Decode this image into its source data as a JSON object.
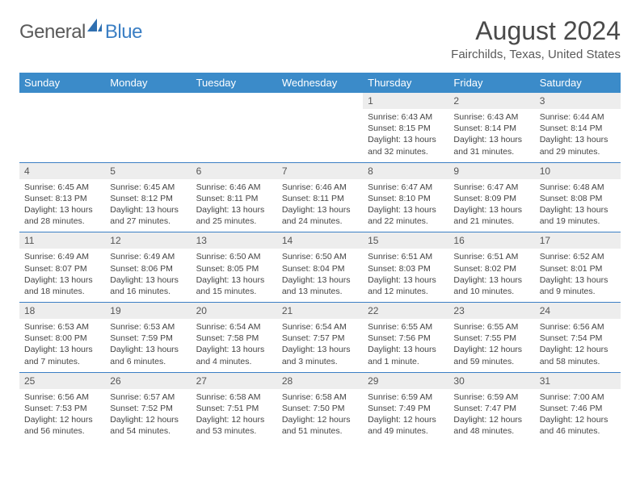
{
  "logo": {
    "text1": "General",
    "text2": "Blue"
  },
  "title": "August 2024",
  "location": "Fairchilds, Texas, United States",
  "colors": {
    "header_bg": "#3b8bc9",
    "header_text": "#ffffff",
    "daynum_bg": "#ededed",
    "row_divider": "#3b7fc4",
    "logo_gray": "#5a5a5a",
    "logo_blue": "#3b7fc4",
    "body_text": "#444444"
  },
  "typography": {
    "title_fontsize": 32,
    "location_fontsize": 15,
    "weekday_fontsize": 13,
    "daynum_fontsize": 12,
    "body_fontsize": 10.5
  },
  "weekdays": [
    "Sunday",
    "Monday",
    "Tuesday",
    "Wednesday",
    "Thursday",
    "Friday",
    "Saturday"
  ],
  "weeks": [
    [
      null,
      null,
      null,
      null,
      {
        "n": "1",
        "sunrise": "6:43 AM",
        "sunset": "8:15 PM",
        "daylight": "13 hours and 32 minutes."
      },
      {
        "n": "2",
        "sunrise": "6:43 AM",
        "sunset": "8:14 PM",
        "daylight": "13 hours and 31 minutes."
      },
      {
        "n": "3",
        "sunrise": "6:44 AM",
        "sunset": "8:14 PM",
        "daylight": "13 hours and 29 minutes."
      }
    ],
    [
      {
        "n": "4",
        "sunrise": "6:45 AM",
        "sunset": "8:13 PM",
        "daylight": "13 hours and 28 minutes."
      },
      {
        "n": "5",
        "sunrise": "6:45 AM",
        "sunset": "8:12 PM",
        "daylight": "13 hours and 27 minutes."
      },
      {
        "n": "6",
        "sunrise": "6:46 AM",
        "sunset": "8:11 PM",
        "daylight": "13 hours and 25 minutes."
      },
      {
        "n": "7",
        "sunrise": "6:46 AM",
        "sunset": "8:11 PM",
        "daylight": "13 hours and 24 minutes."
      },
      {
        "n": "8",
        "sunrise": "6:47 AM",
        "sunset": "8:10 PM",
        "daylight": "13 hours and 22 minutes."
      },
      {
        "n": "9",
        "sunrise": "6:47 AM",
        "sunset": "8:09 PM",
        "daylight": "13 hours and 21 minutes."
      },
      {
        "n": "10",
        "sunrise": "6:48 AM",
        "sunset": "8:08 PM",
        "daylight": "13 hours and 19 minutes."
      }
    ],
    [
      {
        "n": "11",
        "sunrise": "6:49 AM",
        "sunset": "8:07 PM",
        "daylight": "13 hours and 18 minutes."
      },
      {
        "n": "12",
        "sunrise": "6:49 AM",
        "sunset": "8:06 PM",
        "daylight": "13 hours and 16 minutes."
      },
      {
        "n": "13",
        "sunrise": "6:50 AM",
        "sunset": "8:05 PM",
        "daylight": "13 hours and 15 minutes."
      },
      {
        "n": "14",
        "sunrise": "6:50 AM",
        "sunset": "8:04 PM",
        "daylight": "13 hours and 13 minutes."
      },
      {
        "n": "15",
        "sunrise": "6:51 AM",
        "sunset": "8:03 PM",
        "daylight": "13 hours and 12 minutes."
      },
      {
        "n": "16",
        "sunrise": "6:51 AM",
        "sunset": "8:02 PM",
        "daylight": "13 hours and 10 minutes."
      },
      {
        "n": "17",
        "sunrise": "6:52 AM",
        "sunset": "8:01 PM",
        "daylight": "13 hours and 9 minutes."
      }
    ],
    [
      {
        "n": "18",
        "sunrise": "6:53 AM",
        "sunset": "8:00 PM",
        "daylight": "13 hours and 7 minutes."
      },
      {
        "n": "19",
        "sunrise": "6:53 AM",
        "sunset": "7:59 PM",
        "daylight": "13 hours and 6 minutes."
      },
      {
        "n": "20",
        "sunrise": "6:54 AM",
        "sunset": "7:58 PM",
        "daylight": "13 hours and 4 minutes."
      },
      {
        "n": "21",
        "sunrise": "6:54 AM",
        "sunset": "7:57 PM",
        "daylight": "13 hours and 3 minutes."
      },
      {
        "n": "22",
        "sunrise": "6:55 AM",
        "sunset": "7:56 PM",
        "daylight": "13 hours and 1 minute."
      },
      {
        "n": "23",
        "sunrise": "6:55 AM",
        "sunset": "7:55 PM",
        "daylight": "12 hours and 59 minutes."
      },
      {
        "n": "24",
        "sunrise": "6:56 AM",
        "sunset": "7:54 PM",
        "daylight": "12 hours and 58 minutes."
      }
    ],
    [
      {
        "n": "25",
        "sunrise": "6:56 AM",
        "sunset": "7:53 PM",
        "daylight": "12 hours and 56 minutes."
      },
      {
        "n": "26",
        "sunrise": "6:57 AM",
        "sunset": "7:52 PM",
        "daylight": "12 hours and 54 minutes."
      },
      {
        "n": "27",
        "sunrise": "6:58 AM",
        "sunset": "7:51 PM",
        "daylight": "12 hours and 53 minutes."
      },
      {
        "n": "28",
        "sunrise": "6:58 AM",
        "sunset": "7:50 PM",
        "daylight": "12 hours and 51 minutes."
      },
      {
        "n": "29",
        "sunrise": "6:59 AM",
        "sunset": "7:49 PM",
        "daylight": "12 hours and 49 minutes."
      },
      {
        "n": "30",
        "sunrise": "6:59 AM",
        "sunset": "7:47 PM",
        "daylight": "12 hours and 48 minutes."
      },
      {
        "n": "31",
        "sunrise": "7:00 AM",
        "sunset": "7:46 PM",
        "daylight": "12 hours and 46 minutes."
      }
    ]
  ],
  "labels": {
    "sunrise": "Sunrise:",
    "sunset": "Sunset:",
    "daylight": "Daylight:"
  }
}
